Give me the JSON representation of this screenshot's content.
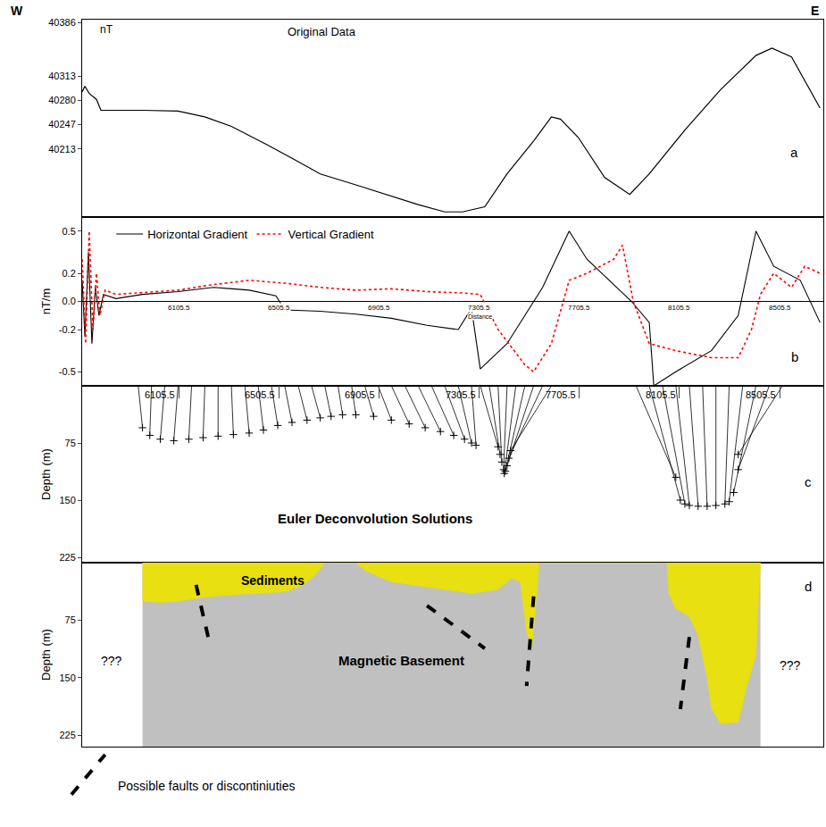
{
  "header": {
    "left": "W",
    "right": "E"
  },
  "chart_data": [
    {
      "type": "line",
      "label": "a",
      "title": "Original Data",
      "y_label": "nT",
      "xlim": [
        5720,
        8680
      ],
      "ylim": [
        40120,
        40390
      ],
      "yticks": [
        40213,
        40247,
        40280,
        40313,
        40386
      ],
      "tick_labels": "y",
      "color": "#000000",
      "x": [
        5720,
        5731,
        5748,
        5777,
        5795,
        5961,
        6103,
        6210,
        6316,
        6458,
        6565,
        6671,
        6813,
        6955,
        7062,
        7168,
        7239,
        7328,
        7417,
        7523,
        7594,
        7630,
        7701,
        7807,
        7907,
        7985,
        8127,
        8269,
        8411,
        8475,
        8553,
        8667
      ],
      "values": [
        40291,
        40299,
        40289,
        40281,
        40266,
        40266,
        40265,
        40257,
        40244,
        40219,
        40199,
        40179,
        40164,
        40149,
        40137,
        40127,
        40127,
        40134,
        40179,
        40224,
        40257,
        40254,
        40229,
        40174,
        40151,
        40179,
        40239,
        40294,
        40341,
        40351,
        40339,
        40269
      ]
    },
    {
      "type": "line",
      "label": "b",
      "y_label": "nT/m",
      "x_label": "Distance",
      "xlim": [
        5720,
        8680
      ],
      "ylim": [
        -0.6,
        0.6
      ],
      "yticks": [
        0.5,
        0.2,
        {
          "value": 0,
          "label": "0.0"
        },
        -0.2,
        -0.5
      ],
      "xticks": [
        6105.5,
        6505.5,
        6905.5,
        7305.5,
        7705.5,
        8105.5,
        8505.5
      ],
      "legend": "upper left",
      "series": [
        {
          "name": "Horizontal Gradient",
          "color": "#000000",
          "line_style": "solid",
          "x": [
            5720,
            5731,
            5745,
            5759,
            5773,
            5787,
            5805,
            5855,
            5961,
            6103,
            6245,
            6387,
            6494,
            6529,
            6671,
            6813,
            6955,
            7097,
            7222,
            7275,
            7310,
            7417,
            7559,
            7665,
            7736,
            7843,
            7914,
            7985,
            8003,
            8091,
            8233,
            8340,
            8411,
            8482,
            8588,
            8667
          ],
          "values": [
            0.15,
            -0.25,
            0.35,
            -0.3,
            0.1,
            -0.1,
            0.05,
            0.02,
            0.05,
            0.07,
            0.1,
            0.08,
            0.04,
            -0.06,
            -0.07,
            -0.09,
            -0.12,
            -0.17,
            -0.2,
            -0.05,
            -0.48,
            -0.3,
            0.1,
            0.5,
            0.3,
            0.12,
            0,
            -0.15,
            -0.6,
            -0.5,
            -0.35,
            -0.1,
            0.5,
            0.25,
            0.15,
            -0.15
          ]
        },
        {
          "name": "Vertical Gradient",
          "color": "#ff0000",
          "line_style": "dotted",
          "x": [
            5720,
            5734,
            5748,
            5763,
            5777,
            5791,
            5812,
            5855,
            6103,
            6245,
            6387,
            6529,
            6671,
            6813,
            6955,
            7097,
            7239,
            7310,
            7381,
            7488,
            7523,
            7594,
            7665,
            7736,
            7843,
            7878,
            7921,
            7985,
            8091,
            8233,
            8340,
            8393,
            8429,
            8482,
            8553,
            8606,
            8667
          ],
          "values": [
            0.3,
            -0.3,
            0.5,
            -0.2,
            0.2,
            -0.1,
            0.08,
            0.05,
            0.08,
            0.12,
            0.15,
            0.13,
            0.1,
            0.08,
            0.09,
            0.07,
            0.06,
            0.05,
            -0.2,
            -0.45,
            -0.5,
            -0.3,
            0.15,
            0.2,
            0.3,
            0.4,
            0,
            -0.3,
            -0.35,
            -0.4,
            -0.4,
            -0.2,
            0.05,
            0.2,
            0.1,
            0.25,
            0.2
          ]
        }
      ]
    },
    {
      "type": "scatter",
      "label": "c",
      "title": "Euler Deconvolution Solutions",
      "y_label": "Depth (m)",
      "xlim": [
        5720,
        8680
      ],
      "ylim": [
        232,
        0
      ],
      "xticks": [
        6105.5,
        6505.5,
        6905.5,
        7305.5,
        7705.5,
        8105.5,
        8505.5
      ],
      "yticks": [
        75,
        150,
        225
      ],
      "marker": "cross",
      "color": "#000000",
      "solutions": {
        "surface_x": [
          5944,
          5997,
          6050,
          6103,
          6157,
          6210,
          6263,
          6316,
          6370,
          6423,
          6476,
          6529,
          6583,
          6636,
          6689,
          6742,
          6796,
          6849,
          6902,
          6955,
          7009,
          7062,
          7115,
          7168,
          7222,
          7275,
          7310,
          7346,
          7381,
          7417,
          7452,
          7488,
          7523,
          7559,
          7594,
          7932,
          7985,
          8038,
          8091,
          8145,
          8198,
          8251,
          8304,
          8358,
          8411,
          8464,
          8517
        ],
        "x": [
          5961,
          5990,
          6032,
          6086,
          6146,
          6203,
          6263,
          6324,
          6387,
          6444,
          6501,
          6558,
          6618,
          6671,
          6714,
          6760,
          6813,
          6884,
          6955,
          7026,
          7090,
          7151,
          7204,
          7247,
          7275,
          7293,
          7381,
          7389,
          7396,
          7403,
          7406,
          7410,
          7417,
          7424,
          7431,
          8091,
          8109,
          8127,
          8145,
          8180,
          8216,
          8251,
          8287,
          8304,
          8322,
          8340,
          8340
        ],
        "depth": [
          55,
          65,
          70,
          72,
          70,
          68,
          66,
          64,
          62,
          58,
          52,
          48,
          45,
          42,
          40,
          38,
          38,
          40,
          45,
          50,
          55,
          60,
          65,
          70,
          75,
          78,
          80,
          90,
          100,
          110,
          115,
          112,
          105,
          95,
          85,
          120,
          150,
          155,
          157,
          158,
          158,
          157,
          155,
          152,
          140,
          110,
          90
        ]
      }
    },
    {
      "type": "section",
      "label": "d",
      "y_label": "Depth (m)",
      "xlim": [
        5720,
        8680
      ],
      "ylim": [
        240,
        0
      ],
      "yticks": [
        75,
        150,
        225
      ],
      "tick_labels": "y",
      "unknown": [
        "???",
        "???"
      ],
      "basement": {
        "name": "Magnetic Basement",
        "color": "#c0c0c0",
        "x": [
          5961,
          8429
        ]
      },
      "sediments": {
        "name": "Sediments",
        "color": "#e8e010",
        "x": [
          5961,
          6032,
          6103,
          6210,
          6316,
          6423,
          6529,
          6600,
          6654,
          6689,
          6813,
          6849,
          6955,
          7062,
          7168,
          7275,
          7381,
          7435,
          7470,
          7495,
          7516,
          7531,
          7545,
          8056,
          8063,
          8091,
          8145,
          8180,
          8216,
          8233,
          8269,
          8340,
          8375,
          8411,
          8422,
          8429
        ],
        "depth": [
          50,
          52,
          50,
          45,
          42,
          40,
          38,
          30,
          15,
          0,
          0,
          10,
          25,
          30,
          35,
          40,
          35,
          20,
          25,
          90,
          110,
          60,
          0,
          0,
          40,
          60,
          70,
          95,
          150,
          190,
          210,
          208,
          160,
          120,
          40,
          0
        ]
      },
      "faults": {
        "name": "Possible faults or discontiniuties",
        "color": "#000000",
        "line_style": "dashed",
        "lines": [
          {
            "x": [
              6175,
              6229
            ],
            "depth": [
              29,
              105
            ]
          },
          {
            "x": [
              7097,
              7328
            ],
            "depth": [
              56,
              112
            ]
          },
          {
            "x": [
              7523,
              7495
            ],
            "depth": [
              44,
              161
            ]
          },
          {
            "x": [
              8145,
              8109
            ],
            "depth": [
              97,
              191
            ]
          }
        ]
      }
    }
  ]
}
